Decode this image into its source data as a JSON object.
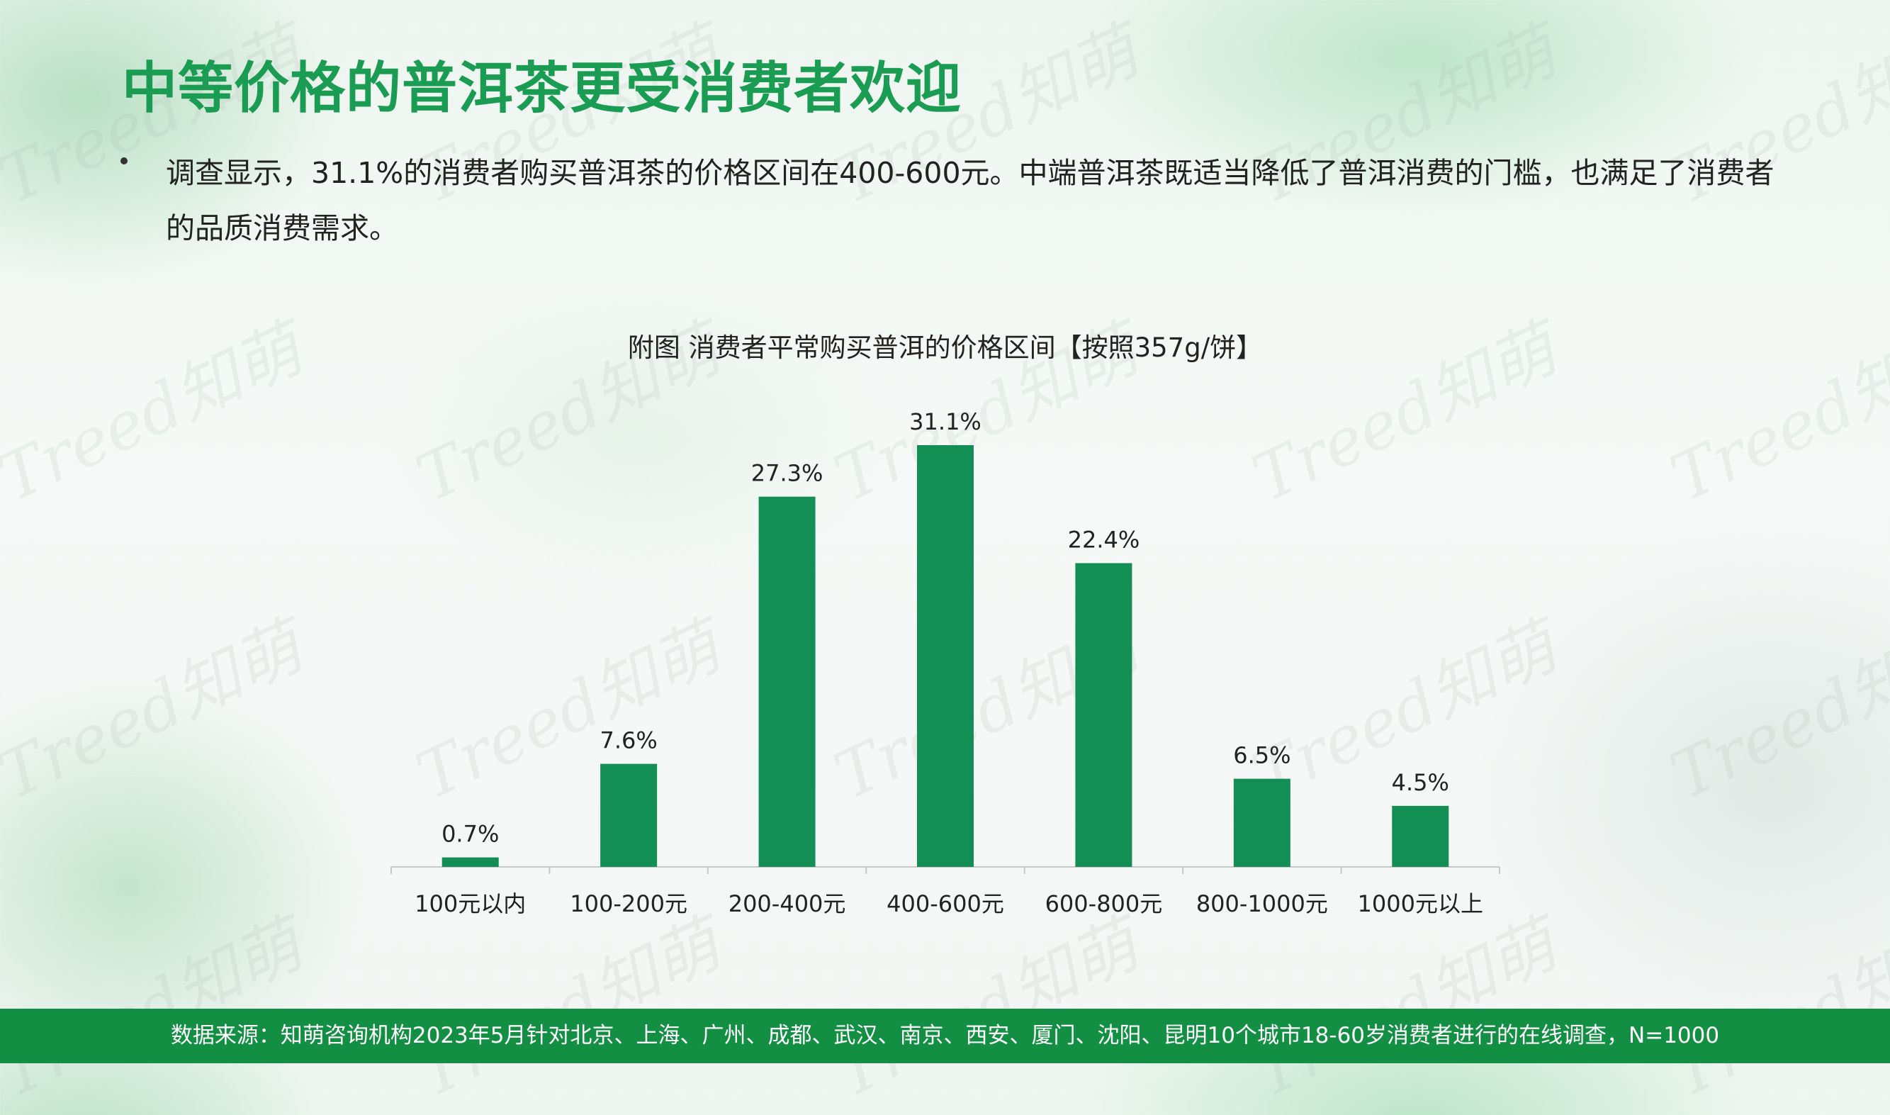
{
  "title": "中等价格的普洱茶更受消费者欢迎",
  "summary": "调查显示，31.1%的消费者购买普洱茶的价格区间在400-600元。中端普洱茶既适当降低了普洱消费的门槛，也满足了消费者的品质消费需求。",
  "watermark_text": "Treed知萌",
  "source_note": "数据来源：知萌咨询机构2023年5月针对北京、上海、广州、成都、武汉、南京、西安、厦门、沈阳、昆明10个城市18-60岁消费者进行的在线调查，N=1000",
  "colors": {
    "title": "#1a9c52",
    "bar": "#138f55",
    "footer": "#138f43"
  },
  "chart_data": {
    "type": "bar",
    "title": "附图 消费者平常购买普洱的价格区间【按照357g/饼】",
    "categories": [
      "100元以内",
      "100-200元",
      "200-400元",
      "400-600元",
      "600-800元",
      "800-1000元",
      "1000元以上"
    ],
    "values": [
      0.7,
      7.6,
      27.3,
      31.1,
      22.4,
      6.5,
      4.5
    ],
    "value_labels": [
      "0.7%",
      "7.6%",
      "27.3%",
      "31.1%",
      "22.4%",
      "6.5%",
      "4.5%"
    ],
    "unit": "%",
    "ylim": [
      0,
      31.1
    ],
    "grid": false,
    "legend": "none"
  }
}
